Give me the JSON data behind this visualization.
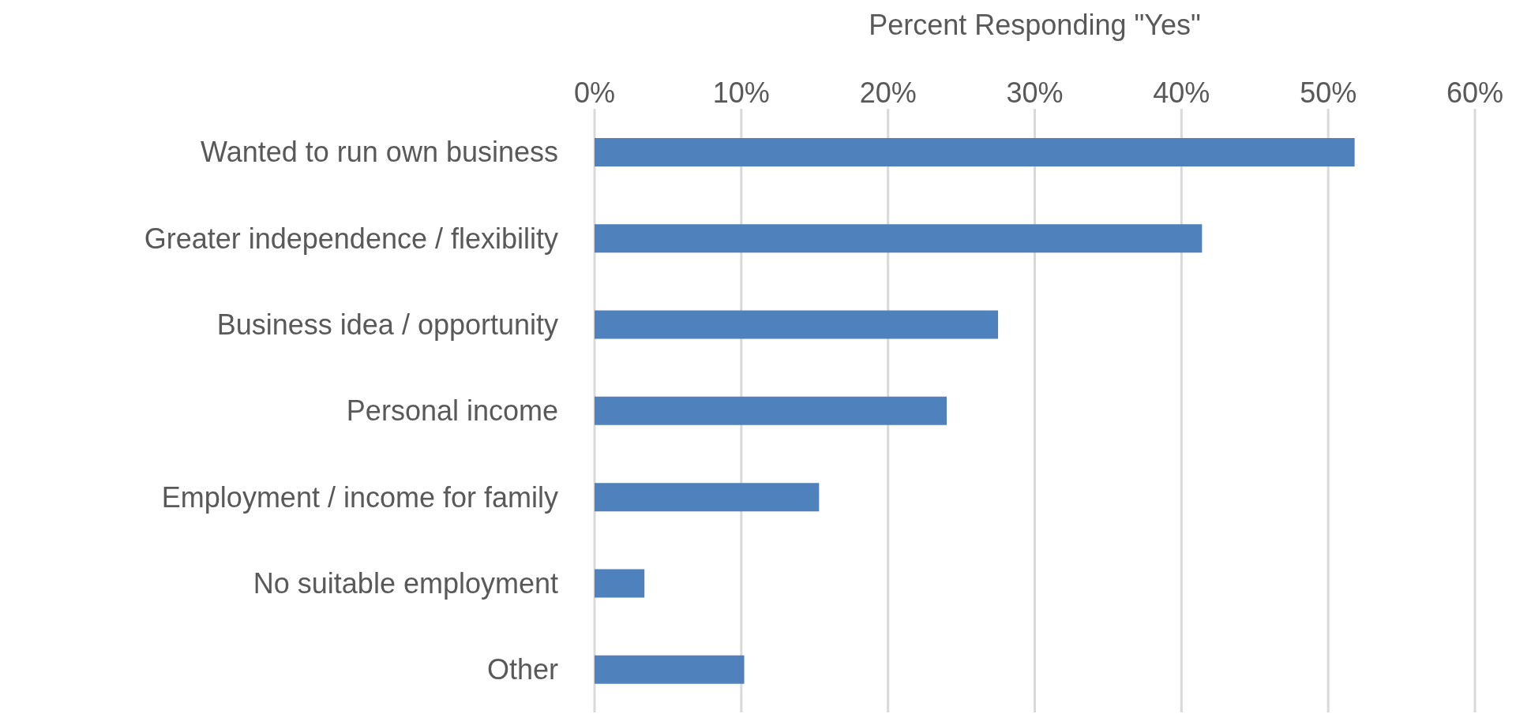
{
  "chart_data": {
    "type": "bar",
    "orientation": "horizontal",
    "xlabel": "Percent Responding \"Yes\"",
    "categories": [
      "Wanted to run own business",
      "Greater independence / flexibility",
      "Business idea / opportunity",
      "Personal income",
      "Employment / income for family",
      "No suitable employment",
      "Other"
    ],
    "values": [
      51.8,
      41.4,
      27.5,
      24.0,
      15.3,
      3.4,
      10.2
    ],
    "color": "#4f81bd",
    "xlim": [
      0,
      60
    ],
    "xticks": [
      {
        "value": 0,
        "label": "0%"
      },
      {
        "value": 10,
        "label": "10%"
      },
      {
        "value": 20,
        "label": "20%"
      },
      {
        "value": 30,
        "label": "30%"
      },
      {
        "value": 40,
        "label": "40%"
      },
      {
        "value": 50,
        "label": "50%"
      },
      {
        "value": 60,
        "label": "60%"
      }
    ],
    "grid": "x"
  }
}
